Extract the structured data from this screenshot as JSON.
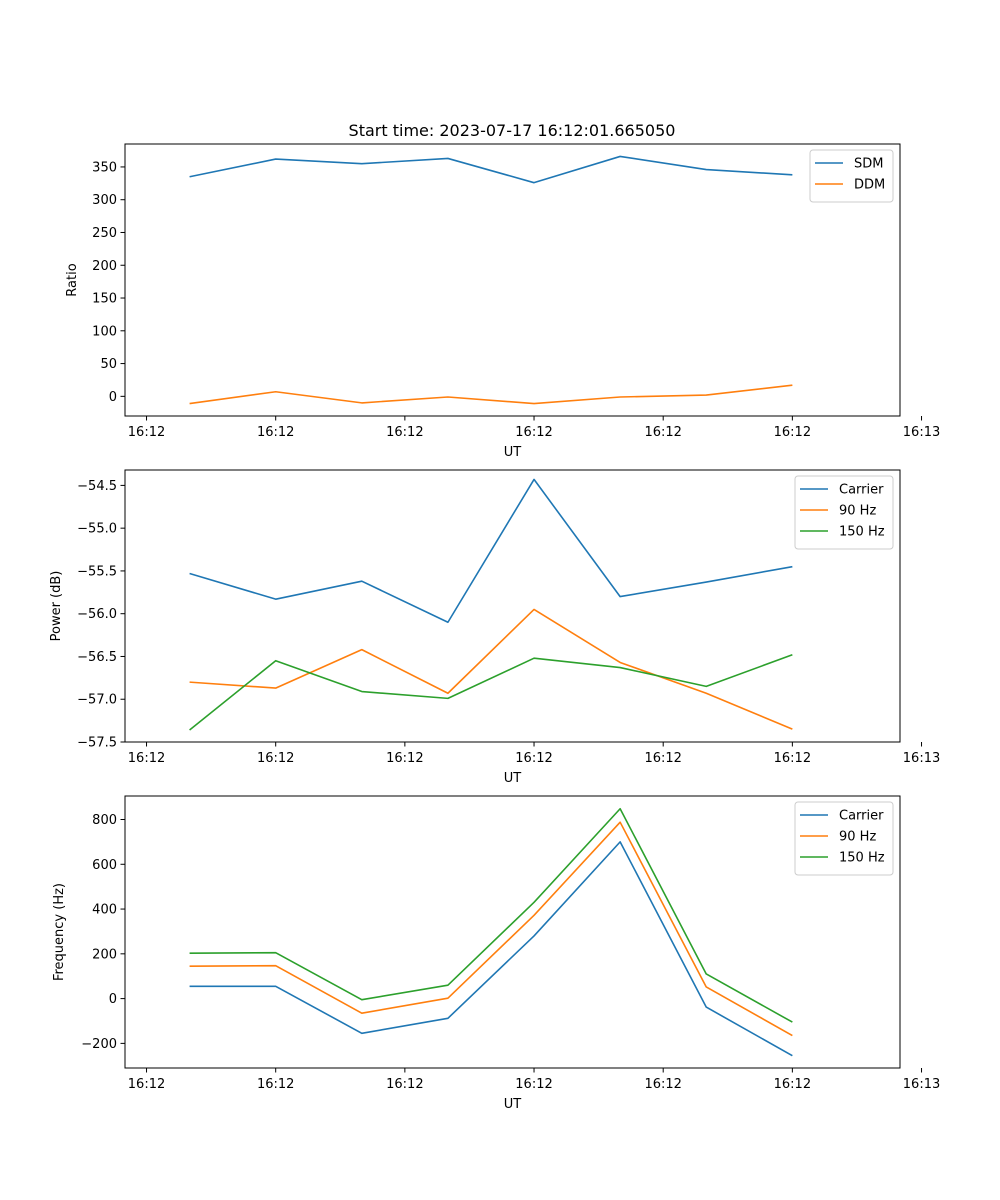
{
  "figure_title": "Start time: 2023-07-17 16:12:01.665050",
  "chart_data": [
    {
      "type": "line",
      "title": "Start time: 2023-07-17 16:12:01.665050",
      "xlabel": "UT",
      "ylabel": "Ratio",
      "x": [
        1,
        2,
        3,
        4,
        5,
        6,
        7,
        8
      ],
      "xlim": [
        0.25,
        9.25
      ],
      "xticks": [
        0.5,
        2,
        3.5,
        5,
        6.5,
        8,
        9.5
      ],
      "xtick_labels": [
        "16:12",
        "16:12",
        "16:12",
        "16:12",
        "16:12",
        "16:12",
        "16:13"
      ],
      "ylim": [
        -30,
        385
      ],
      "yticks": [
        0,
        50,
        100,
        150,
        200,
        250,
        300,
        350
      ],
      "ytick_labels": [
        "0",
        "50",
        "100",
        "150",
        "200",
        "250",
        "300",
        "350"
      ],
      "legend_position": "top-right",
      "series": [
        {
          "name": "SDM",
          "color": "#1f77b4",
          "values": [
            335,
            362,
            355,
            363,
            326,
            366,
            346,
            338
          ]
        },
        {
          "name": "DDM",
          "color": "#ff7f0e",
          "values": [
            -11,
            7,
            -10,
            -1,
            -11,
            -1,
            2,
            17
          ]
        }
      ]
    },
    {
      "type": "line",
      "xlabel": "UT",
      "ylabel": "Power (dB)",
      "x": [
        1,
        2,
        3,
        4,
        5,
        6,
        7,
        8
      ],
      "xlim": [
        0.25,
        9.25
      ],
      "xticks": [
        0.5,
        2,
        3.5,
        5,
        6.5,
        8,
        9.5
      ],
      "xtick_labels": [
        "16:12",
        "16:12",
        "16:12",
        "16:12",
        "16:12",
        "16:12",
        "16:13"
      ],
      "ylim": [
        -57.5,
        -54.32
      ],
      "yticks": [
        -57.5,
        -57.0,
        -56.5,
        -56.0,
        -55.5,
        -55.0,
        -54.5
      ],
      "ytick_labels": [
        "−57.5",
        "−57.0",
        "−56.5",
        "−56.0",
        "−55.5",
        "−55.0",
        "−54.5"
      ],
      "legend_position": "top-right",
      "series": [
        {
          "name": "Carrier",
          "color": "#1f77b4",
          "values": [
            -55.53,
            -55.83,
            -55.62,
            -56.1,
            -54.43,
            -55.8,
            -55.63,
            -55.45
          ]
        },
        {
          "name": "90 Hz",
          "color": "#ff7f0e",
          "values": [
            -56.8,
            -56.87,
            -56.42,
            -56.93,
            -55.95,
            -56.57,
            -56.93,
            -57.35
          ]
        },
        {
          "name": "150 Hz",
          "color": "#2ca02c",
          "values": [
            -57.36,
            -56.55,
            -56.91,
            -56.99,
            -56.52,
            -56.63,
            -56.85,
            -56.48
          ]
        }
      ]
    },
    {
      "type": "line",
      "xlabel": "UT",
      "ylabel": "Frequency (Hz)",
      "x": [
        1,
        2,
        3,
        4,
        5,
        6,
        7,
        8
      ],
      "xlim": [
        0.25,
        9.25
      ],
      "xticks": [
        0.5,
        2,
        3.5,
        5,
        6.5,
        8,
        9.5
      ],
      "xtick_labels": [
        "16:12",
        "16:12",
        "16:12",
        "16:12",
        "16:12",
        "16:12",
        "16:13"
      ],
      "ylim": [
        -310,
        905
      ],
      "yticks": [
        -200,
        0,
        200,
        400,
        600,
        800
      ],
      "ytick_labels": [
        "−200",
        "0",
        "200",
        "400",
        "600",
        "800"
      ],
      "legend_position": "top-right",
      "series": [
        {
          "name": "Carrier",
          "color": "#1f77b4",
          "values": [
            55,
            55,
            -155,
            -88,
            280,
            700,
            -38,
            -255
          ]
        },
        {
          "name": "90 Hz",
          "color": "#ff7f0e",
          "values": [
            145,
            147,
            -65,
            2,
            372,
            788,
            52,
            -165
          ]
        },
        {
          "name": "150 Hz",
          "color": "#2ca02c",
          "values": [
            203,
            205,
            -5,
            60,
            430,
            848,
            110,
            -105
          ]
        }
      ]
    }
  ]
}
